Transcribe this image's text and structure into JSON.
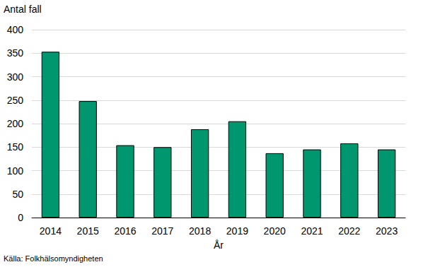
{
  "chart_data": {
    "type": "bar",
    "y_label": "Antal fall",
    "x_label": "År",
    "source": "Källa: Folkhälsomyndigheten",
    "categories": [
      "2014",
      "2015",
      "2016",
      "2017",
      "2018",
      "2019",
      "2020",
      "2021",
      "2022",
      "2023"
    ],
    "values": [
      353,
      248,
      154,
      150,
      188,
      205,
      137,
      145,
      158,
      145
    ],
    "color": "#00966e",
    "ylim": [
      0,
      400
    ],
    "yticks": [
      0,
      50,
      100,
      150,
      200,
      250,
      300,
      350,
      400
    ],
    "grid": true
  }
}
